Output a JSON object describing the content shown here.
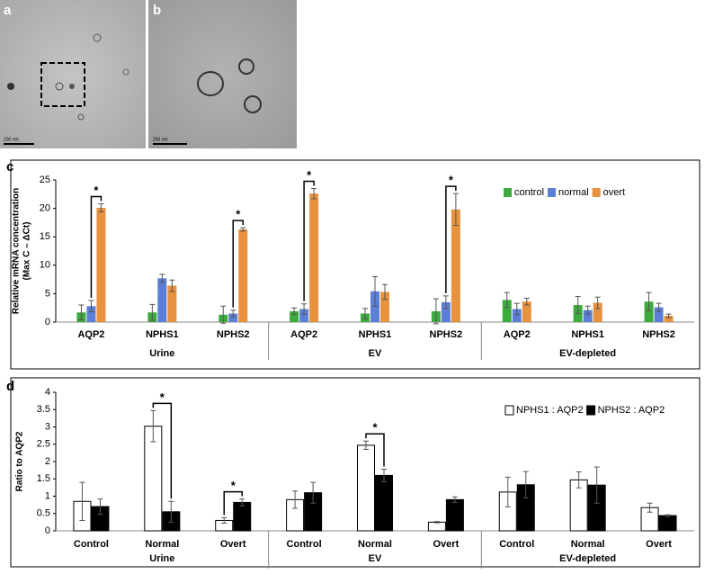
{
  "panels": {
    "a": "a",
    "b": "b",
    "c": "c",
    "d": "d",
    "scale_a": "200 nm",
    "scale_b": "200 nm"
  },
  "chart_data": [
    {
      "type": "bar",
      "y_label": [
        "Relative mRNA concentration",
        "(Max C – ΔCt)"
      ],
      "categories": [
        "AQP2",
        "NPHS1",
        "NPHS2",
        "AQP2",
        "NPHS1",
        "NPHS2",
        "AQP2",
        "NPHS1",
        "NPHS2"
      ],
      "groups": [
        "Urine",
        "EV",
        "EV-depleted"
      ],
      "series": [
        {
          "name": "control",
          "color": "#3daa3d",
          "values": [
            1.7,
            1.7,
            1.3,
            1.9,
            1.5,
            1.9,
            3.9,
            3.0,
            3.6
          ],
          "errors": [
            1.3,
            1.4,
            1.5,
            0.6,
            0.9,
            2.2,
            1.3,
            1.5,
            1.6
          ]
        },
        {
          "name": "normal",
          "color": "#5b7fd6",
          "values": [
            2.8,
            7.7,
            1.5,
            2.3,
            5.4,
            3.5,
            2.3,
            2.1,
            2.6
          ],
          "errors": [
            1.0,
            0.7,
            0.6,
            0.9,
            2.6,
            1.1,
            1.0,
            0.7,
            0.7
          ]
        },
        {
          "name": "overt",
          "color": "#e8913f",
          "values": [
            20.1,
            6.4,
            16.3,
            22.6,
            5.3,
            19.8,
            3.6,
            3.4,
            1.1
          ],
          "errors": [
            0.7,
            1.0,
            0.3,
            0.9,
            1.3,
            2.8,
            0.6,
            1.0,
            0.3
          ]
        }
      ],
      "significance": [
        {
          "text": "*",
          "category": 0,
          "between": [
            "normal",
            "overt"
          ]
        },
        {
          "text": "*",
          "category": 2,
          "between": [
            "normal",
            "overt"
          ]
        },
        {
          "text": "*",
          "category": 3,
          "between": [
            "normal",
            "overt"
          ]
        },
        {
          "text": "*",
          "category": 5,
          "between": [
            "normal",
            "overt"
          ]
        }
      ],
      "ylim": [
        0,
        25
      ],
      "yticks": [
        0,
        5,
        10,
        15,
        20,
        25
      ],
      "grid": false,
      "legend": "top-right"
    },
    {
      "type": "bar",
      "y_label": [
        "Ratio to AQP2"
      ],
      "categories": [
        "Control",
        "Normal",
        "Overt",
        "Control",
        "Normal",
        "Overt",
        "Control",
        "Normal",
        "Overt"
      ],
      "groups": [
        "Urine",
        "EV",
        "EV-depleted"
      ],
      "series": [
        {
          "name": "NPHS1 : AQP2",
          "color": "#ffffff",
          "values": [
            0.85,
            3.02,
            0.3,
            0.9,
            2.47,
            0.25,
            1.12,
            1.47,
            0.67
          ],
          "errors": [
            0.55,
            0.45,
            0.08,
            0.25,
            0.12,
            0.02,
            0.43,
            0.23,
            0.13
          ]
        },
        {
          "name": "NPHS2 : AQP2",
          "color": "#000000",
          "values": [
            0.7,
            0.55,
            0.82,
            1.1,
            1.6,
            0.9,
            1.33,
            1.32,
            0.44
          ],
          "errors": [
            0.22,
            0.3,
            0.1,
            0.3,
            0.18,
            0.08,
            0.38,
            0.52,
            0.02
          ]
        }
      ],
      "significance": [
        {
          "text": "*",
          "category": 1,
          "between": [
            "NPHS1 : AQP2",
            "NPHS2 : AQP2"
          ]
        },
        {
          "text": "*",
          "category": 2,
          "between": [
            "NPHS1 : AQP2",
            "NPHS2 : AQP2"
          ]
        },
        {
          "text": "*",
          "category": 4,
          "between": [
            "NPHS1 : AQP2",
            "NPHS2 : AQP2"
          ]
        }
      ],
      "ylim": [
        0,
        4
      ],
      "yticks": [
        0,
        0.5,
        1,
        1.5,
        2,
        2.5,
        3,
        3.5,
        4
      ],
      "grid": false,
      "legend": "top-right"
    }
  ]
}
